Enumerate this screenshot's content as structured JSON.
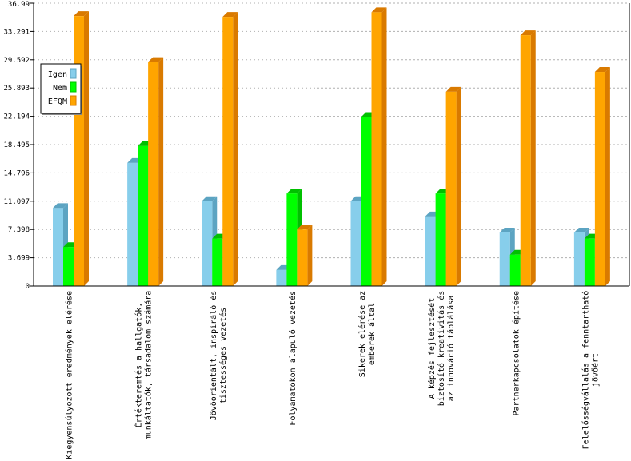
{
  "chart_data": {
    "type": "bar",
    "style": "3d-grouped",
    "ylim": [
      0,
      36.99
    ],
    "yticks": [
      "0",
      "3.699",
      "7.398",
      "11.097",
      "14.796",
      "18.495",
      "22.194",
      "25.893",
      "29.592",
      "33.291",
      "36.99"
    ],
    "grid": true,
    "legend_position": "left",
    "categories": [
      [
        "Kiegyensúlyozott eredmények elérése"
      ],
      [
        "Értékteremtés a hallgatók,",
        "munkáltatók, társadalom számára"
      ],
      [
        "Jövőorientált, inspiráló és",
        "tisztességes vezetés"
      ],
      [
        "Folyamatokon alapuló vezetés"
      ],
      [
        "Sikerek elérése az",
        "emberek által"
      ],
      [
        "A képzés fejlesztését",
        "biztosító kreativitás és",
        "az innováció táplálása"
      ],
      [
        "Partnerkapcsolatok építése"
      ],
      [
        "Felelősségvállalás a fenntartható",
        "jövőért"
      ]
    ],
    "series": [
      {
        "name": "Igen",
        "color": "#87ceeb",
        "side": "#5ca4c2",
        "values": [
          10.2,
          16.1,
          11.1,
          2.1,
          11.1,
          9.1,
          7.0,
          7.0
        ]
      },
      {
        "name": "Nem",
        "color": "#00ff00",
        "side": "#00c000",
        "values": [
          5.1,
          18.3,
          6.2,
          12.1,
          22.1,
          12.1,
          4.1,
          6.2
        ]
      },
      {
        "name": "EFQM",
        "color": "#ffa500",
        "side": "#d97a00",
        "values": [
          35.3,
          29.3,
          35.2,
          7.4,
          35.8,
          25.4,
          32.8,
          28.0
        ]
      }
    ]
  }
}
